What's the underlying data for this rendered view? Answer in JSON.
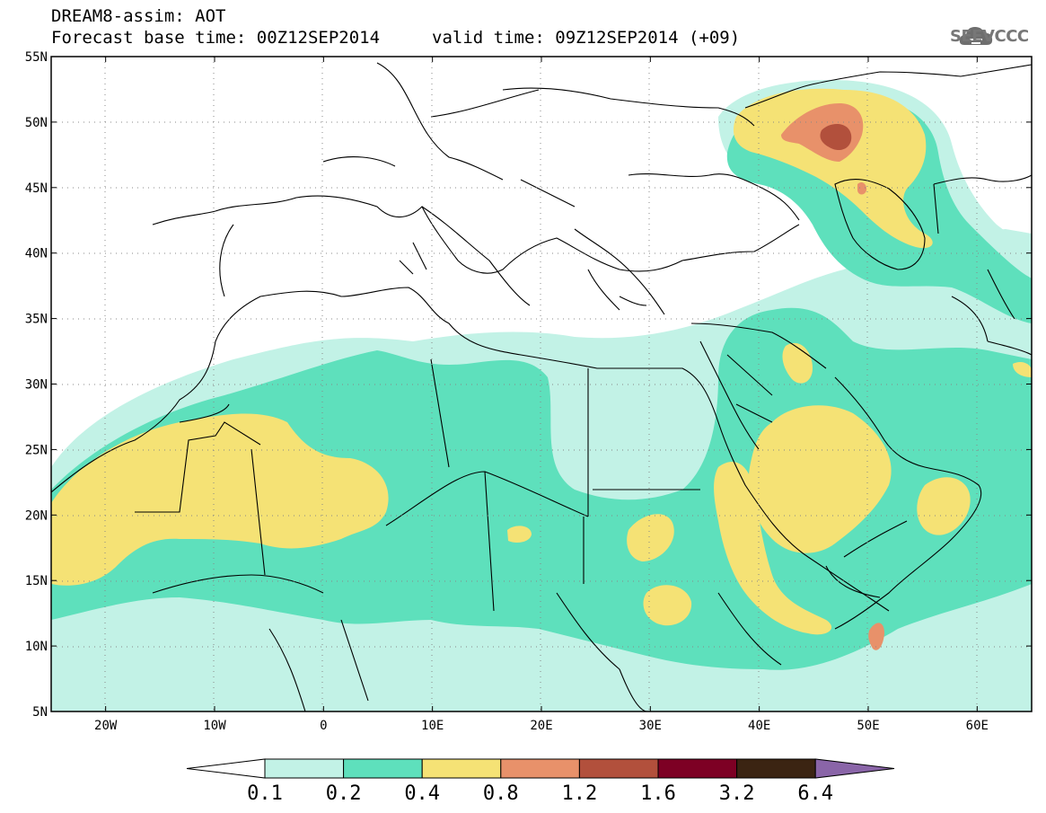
{
  "header": {
    "title_line1": "DREAM8-assim: AOT",
    "forecast_base": "Forecast base time: 00Z12SEP2014",
    "valid_time": "valid time: 09Z12SEP2014 (+09)",
    "logo_text": "SEEVCCC"
  },
  "map": {
    "region": "North Africa, Europe, Middle East",
    "lon_range": [
      -25,
      65
    ],
    "lat_range": [
      5,
      55
    ],
    "lon_ticks": [
      "20W",
      "10W",
      "0",
      "10E",
      "20E",
      "30E",
      "40E",
      "50E",
      "60E"
    ],
    "lat_ticks": [
      "55N",
      "50N",
      "45N",
      "40N",
      "35N",
      "30N",
      "25N",
      "20N",
      "15N",
      "10N",
      "5N"
    ],
    "grid": "dotted",
    "icons": [
      "cloud-logo-icon"
    ]
  },
  "colorbar": {
    "labels": [
      "0.1",
      "0.2",
      "0.4",
      "0.8",
      "1.2",
      "1.6",
      "3.2",
      "6.4"
    ],
    "colors": [
      "#ffffff",
      "#c2f2e6",
      "#5ee0bc",
      "#f5e275",
      "#e8916a",
      "#b2503c",
      "#7d0024",
      "#3b2412",
      "#8a65a8"
    ]
  }
}
